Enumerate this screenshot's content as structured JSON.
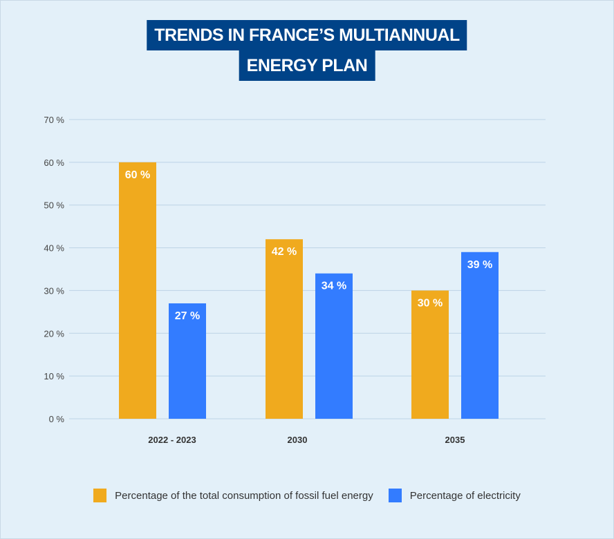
{
  "chart_data": {
    "type": "bar",
    "title_lines": [
      "TRENDS IN FRANCE’S MULTIANNUAL",
      "ENERGY PLAN"
    ],
    "categories": [
      "2022 - 2023",
      "2030",
      "2035"
    ],
    "series": [
      {
        "name": "Percentage of the total consumption of fossil fuel energy",
        "values": [
          60,
          42,
          30
        ],
        "labels": [
          "60 %",
          "42 %",
          "30 %"
        ],
        "color": "#f0aa1e"
      },
      {
        "name": "Percentage of electricity",
        "values": [
          27,
          34,
          39
        ],
        "labels": [
          "27 %",
          "34 %",
          "39 %"
        ],
        "color": "#337cff"
      }
    ],
    "yticks": [
      "0 %",
      "10 %",
      "20 %",
      "30 %",
      "40 %",
      "50 %",
      "60 %",
      "70 %"
    ],
    "ylim": [
      0,
      70
    ],
    "xlabel": "",
    "ylabel": "",
    "grid": true,
    "legend": "bottom"
  },
  "colors": {
    "title_bg": "#004388",
    "background": "#e3f0f9",
    "grid": "#bcd3e6"
  }
}
